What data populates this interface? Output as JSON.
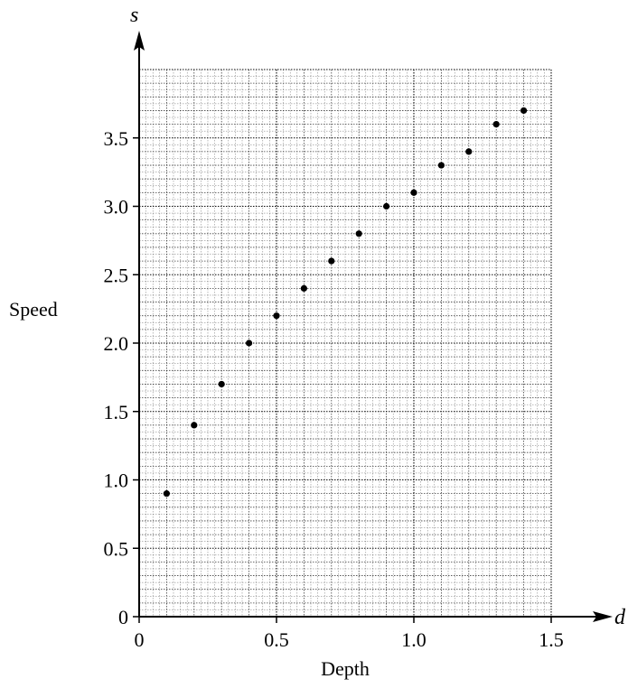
{
  "chart_data": {
    "type": "scatter",
    "title": "",
    "xlabel": "Depth",
    "ylabel": "Speed",
    "x_variable": "d",
    "y_variable": "s",
    "xlim": [
      0,
      1.5
    ],
    "ylim": [
      0,
      4.0
    ],
    "x_ticks": [
      "0",
      "0.5",
      "1.0",
      "1.5"
    ],
    "x_tick_values": [
      0,
      0.5,
      1.0,
      1.5
    ],
    "y_ticks": [
      "0",
      "0.5",
      "1.0",
      "1.5",
      "2.0",
      "2.5",
      "3.0",
      "3.5"
    ],
    "y_tick_values": [
      0,
      0.5,
      1.0,
      1.5,
      2.0,
      2.5,
      3.0,
      3.5
    ],
    "grid": true,
    "points": [
      {
        "x": 0.1,
        "y": 0.9
      },
      {
        "x": 0.2,
        "y": 1.4
      },
      {
        "x": 0.3,
        "y": 1.7
      },
      {
        "x": 0.4,
        "y": 2.0
      },
      {
        "x": 0.5,
        "y": 2.2
      },
      {
        "x": 0.6,
        "y": 2.4
      },
      {
        "x": 0.7,
        "y": 2.6
      },
      {
        "x": 0.8,
        "y": 2.8
      },
      {
        "x": 0.9,
        "y": 3.0
      },
      {
        "x": 1.0,
        "y": 3.1
      },
      {
        "x": 1.1,
        "y": 3.3
      },
      {
        "x": 1.2,
        "y": 3.4
      },
      {
        "x": 1.3,
        "y": 3.6
      },
      {
        "x": 1.4,
        "y": 3.7
      }
    ]
  }
}
